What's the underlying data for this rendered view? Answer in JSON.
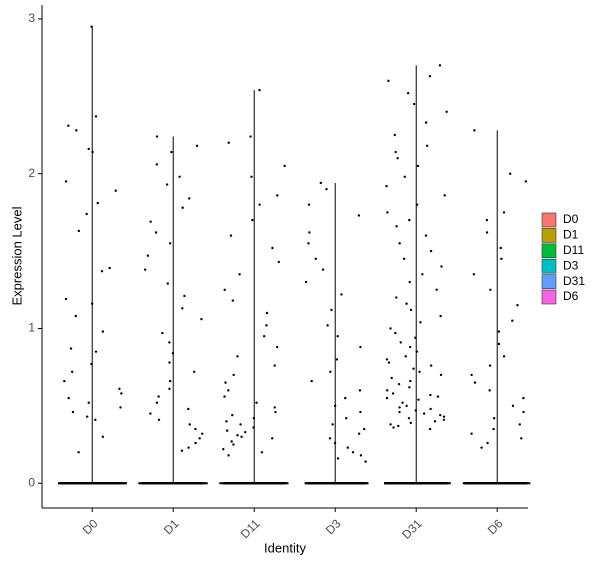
{
  "chart_data": {
    "type": "violin",
    "x_label": "Identity",
    "y_label": "Expression Level",
    "categories": [
      "D0",
      "D1",
      "D11",
      "D3",
      "D31",
      "D6"
    ],
    "colors": [
      "#F8766D",
      "#B79F00",
      "#00BA38",
      "#00BFC4",
      "#619CFF",
      "#F564E3"
    ],
    "values": [
      [
        2.95,
        2.37,
        2.31,
        2.28,
        2.16,
        2.14,
        1.95,
        1.89,
        1.81,
        1.74,
        1.63,
        1.39,
        1.37,
        1.19,
        1.16,
        1.08,
        0.98,
        0.87,
        0.85,
        0.77,
        0.72,
        0.66,
        0.61,
        0.58,
        0.55,
        0.52,
        0.49,
        0.46,
        0.43,
        0.41,
        0.3,
        0.2,
        0,
        0,
        0,
        0,
        0,
        0
      ],
      [
        2.24,
        2.18,
        2.14,
        2.06,
        1.98,
        1.93,
        1.84,
        1.78,
        1.69,
        1.62,
        1.55,
        1.47,
        1.38,
        1.29,
        1.21,
        1.13,
        1.06,
        0.97,
        0.91,
        0.84,
        0.78,
        0.72,
        0.66,
        0.61,
        0.56,
        0.52,
        0.48,
        0.45,
        0.41,
        0.38,
        0.35,
        0.32,
        0.29,
        0.26,
        0.23,
        0.21,
        0,
        0,
        0,
        0,
        0,
        0
      ],
      [
        2.54,
        2.24,
        2.2,
        2.05,
        1.98,
        1.86,
        1.8,
        1.7,
        1.6,
        1.52,
        1.43,
        1.35,
        1.25,
        1.18,
        1.1,
        1.02,
        0.95,
        0.88,
        0.82,
        0.76,
        0.7,
        0.65,
        0.6,
        0.56,
        0.52,
        0.49,
        0.46,
        0.44,
        0.42,
        0.4,
        0.38,
        0.36,
        0.34,
        0.33,
        0.31,
        0.3,
        0.29,
        0.27,
        0.25,
        0.22,
        0.2,
        0.18,
        0,
        0,
        0,
        0,
        0,
        0
      ],
      [
        1.94,
        1.9,
        1.8,
        1.73,
        1.62,
        1.55,
        1.45,
        1.38,
        1.3,
        1.22,
        1.12,
        1.02,
        0.95,
        0.88,
        0.8,
        0.72,
        0.66,
        0.6,
        0.55,
        0.5,
        0.46,
        0.42,
        0.38,
        0.35,
        0.32,
        0.29,
        0.26,
        0.23,
        0.2,
        0.18,
        0.16,
        0.14,
        0,
        0,
        0,
        0,
        0,
        0
      ],
      [
        2.7,
        2.63,
        2.6,
        2.52,
        2.45,
        2.4,
        2.33,
        2.25,
        2.18,
        2.14,
        2.1,
        2.05,
        1.98,
        1.92,
        1.86,
        1.8,
        1.75,
        1.7,
        1.66,
        1.6,
        1.55,
        1.5,
        1.45,
        1.4,
        1.35,
        1.3,
        1.25,
        1.2,
        1.16,
        1.12,
        1.08,
        1.04,
        1.0,
        0.97,
        0.94,
        0.91,
        0.88,
        0.85,
        0.82,
        0.8,
        0.78,
        0.76,
        0.74,
        0.72,
        0.7,
        0.68,
        0.66,
        0.64,
        0.62,
        0.6,
        0.58,
        0.57,
        0.56,
        0.55,
        0.54,
        0.52,
        0.5,
        0.49,
        0.48,
        0.47,
        0.46,
        0.45,
        0.44,
        0.43,
        0.42,
        0.41,
        0.4,
        0.39,
        0.38,
        0.37,
        0.36,
        0.35,
        0,
        0,
        0,
        0,
        0,
        0
      ],
      [
        2.28,
        2.0,
        1.95,
        1.75,
        1.7,
        1.62,
        1.52,
        1.45,
        1.35,
        1.25,
        1.15,
        1.05,
        0.98,
        0.9,
        0.82,
        0.76,
        0.7,
        0.65,
        0.6,
        0.55,
        0.5,
        0.46,
        0.42,
        0.38,
        0.35,
        0.32,
        0.29,
        0.26,
        0.23,
        0,
        0,
        0,
        0,
        0,
        0
      ]
    ],
    "ylim": [
      -0.16,
      3.09
    ],
    "yticks": [
      0,
      1,
      2,
      3
    ],
    "legend": "right"
  }
}
